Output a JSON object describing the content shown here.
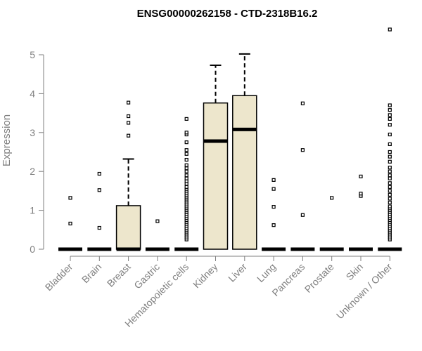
{
  "chart_data": {
    "type": "box",
    "title": "ENSG00000262158 - CTD-2318B16.2",
    "xlabel": "",
    "ylabel": "Expression",
    "ylim": [
      0,
      5.7
    ],
    "yticks": [
      0,
      1,
      2,
      3,
      4,
      5
    ],
    "box_fill": "#ede6cc",
    "categories": [
      "Bladder",
      "Brain",
      "Breast",
      "Gastric",
      "Hematopoietic cells",
      "Kidney",
      "Liver",
      "Lung",
      "Pancreas",
      "Prostate",
      "Skin",
      "Unknown / Other"
    ],
    "boxes": [
      {
        "category": "Bladder",
        "q1": 0,
        "median": 0,
        "q3": 0,
        "whisker_low": 0,
        "whisker_high": 0,
        "outliers": [
          0.66,
          1.32
        ]
      },
      {
        "category": "Brain",
        "q1": 0,
        "median": 0,
        "q3": 0,
        "whisker_low": 0,
        "whisker_high": 0,
        "outliers": [
          0.55,
          1.52,
          1.94
        ]
      },
      {
        "category": "Breast",
        "q1": 0,
        "median": 0,
        "q3": 1.12,
        "whisker_low": 0,
        "whisker_high": 2.32,
        "outliers": [
          2.92,
          3.25,
          3.42,
          3.77
        ]
      },
      {
        "category": "Gastric",
        "q1": 0,
        "median": 0,
        "q3": 0,
        "whisker_low": 0,
        "whisker_high": 0,
        "outliers": [
          0.72
        ]
      },
      {
        "category": "Hematopoietic cells",
        "q1": 0,
        "median": 0,
        "q3": 0,
        "whisker_low": 0,
        "whisker_high": 0,
        "outliers": [
          0.25,
          0.3,
          0.35,
          0.4,
          0.45,
          0.5,
          0.55,
          0.6,
          0.65,
          0.7,
          0.75,
          0.8,
          0.85,
          0.9,
          0.95,
          1.0,
          1.05,
          1.1,
          1.15,
          1.2,
          1.25,
          1.3,
          1.35,
          1.4,
          1.45,
          1.5,
          1.55,
          1.6,
          1.68,
          1.75,
          1.82,
          1.9,
          2.0,
          2.08,
          2.16,
          2.3,
          2.45,
          2.55,
          2.75,
          2.95,
          3.0,
          3.35
        ]
      },
      {
        "category": "Kidney",
        "q1": 0,
        "median": 2.78,
        "q3": 3.76,
        "whisker_low": 0,
        "whisker_high": 4.73,
        "outliers": []
      },
      {
        "category": "Liver",
        "q1": 0,
        "median": 3.08,
        "q3": 3.95,
        "whisker_low": 0,
        "whisker_high": 5.02,
        "outliers": []
      },
      {
        "category": "Lung",
        "q1": 0,
        "median": 0,
        "q3": 0,
        "whisker_low": 0,
        "whisker_high": 0,
        "outliers": [
          0.62,
          1.09,
          1.55,
          1.78
        ]
      },
      {
        "category": "Pancreas",
        "q1": 0,
        "median": 0,
        "q3": 0,
        "whisker_low": 0,
        "whisker_high": 0,
        "outliers": [
          0.88,
          2.55,
          3.75
        ]
      },
      {
        "category": "Prostate",
        "q1": 0,
        "median": 0,
        "q3": 0,
        "whisker_low": 0,
        "whisker_high": 0,
        "outliers": [
          1.32
        ]
      },
      {
        "category": "Skin",
        "q1": 0,
        "median": 0,
        "q3": 0,
        "whisker_low": 0,
        "whisker_high": 0,
        "outliers": [
          1.37,
          1.43,
          1.87
        ]
      },
      {
        "category": "Unknown / Other",
        "q1": 0,
        "median": 0,
        "q3": 0,
        "whisker_low": 0,
        "whisker_high": 0,
        "outliers": [
          0.25,
          0.3,
          0.35,
          0.4,
          0.45,
          0.5,
          0.55,
          0.6,
          0.65,
          0.7,
          0.75,
          0.8,
          0.85,
          0.9,
          0.95,
          1.0,
          1.05,
          1.1,
          1.2,
          1.3,
          1.4,
          1.5,
          1.6,
          1.7,
          1.82,
          1.9,
          2.0,
          2.1,
          2.25,
          2.38,
          2.5,
          2.7,
          2.95,
          3.2,
          3.35,
          3.45,
          3.58,
          3.7,
          5.65
        ]
      }
    ]
  }
}
